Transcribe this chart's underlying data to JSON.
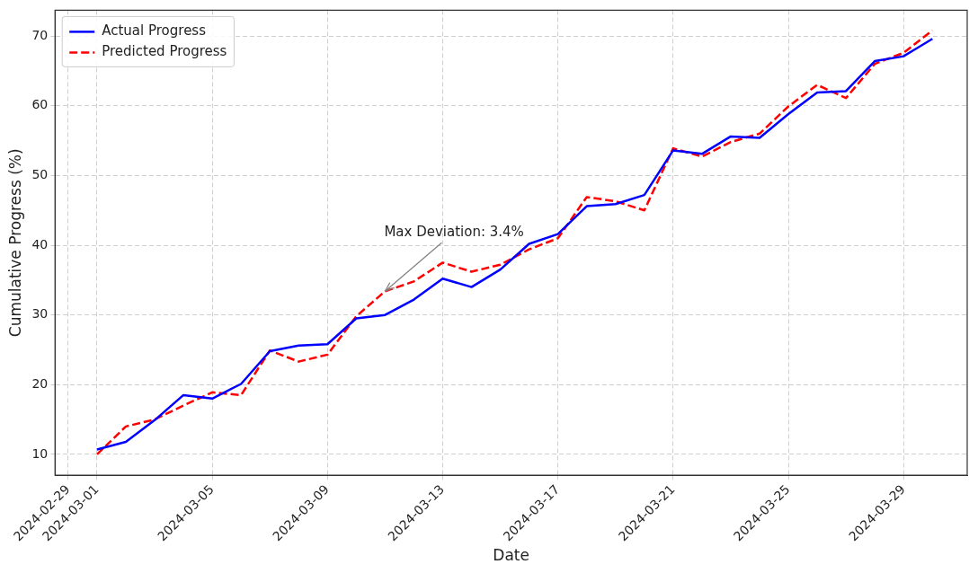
{
  "chart_data": {
    "type": "line",
    "xlabel": "Date",
    "ylabel": "Cumulative Progress (%)",
    "x": [
      "2024-03-01",
      "2024-03-02",
      "2024-03-03",
      "2024-03-04",
      "2024-03-05",
      "2024-03-06",
      "2024-03-07",
      "2024-03-08",
      "2024-03-09",
      "2024-03-10",
      "2024-03-11",
      "2024-03-12",
      "2024-03-13",
      "2024-03-14",
      "2024-03-15",
      "2024-03-16",
      "2024-03-17",
      "2024-03-18",
      "2024-03-19",
      "2024-03-20",
      "2024-03-21",
      "2024-03-22",
      "2024-03-23",
      "2024-03-24",
      "2024-03-25",
      "2024-03-26",
      "2024-03-27",
      "2024-03-28",
      "2024-03-29",
      "2024-03-30"
    ],
    "series": [
      {
        "name": "Actual Progress",
        "color": "#0000ff",
        "line_style": "solid",
        "values": [
          10.7,
          11.8,
          14.9,
          18.5,
          18.0,
          20.1,
          24.8,
          25.6,
          25.8,
          29.5,
          30.0,
          32.2,
          35.2,
          34.0,
          36.5,
          40.2,
          41.6,
          45.6,
          45.9,
          47.2,
          53.6,
          53.1,
          55.6,
          55.4,
          58.8,
          61.9,
          62.1,
          66.4,
          67.1,
          69.6
        ]
      },
      {
        "name": "Predicted Progress",
        "color": "#ff0000",
        "line_style": "dashed",
        "values": [
          10.0,
          14.0,
          15.0,
          17.0,
          18.9,
          18.5,
          24.9,
          23.3,
          24.3,
          29.8,
          33.4,
          34.8,
          37.5,
          36.2,
          37.2,
          39.4,
          41.0,
          46.9,
          46.3,
          45.0,
          53.9,
          52.7,
          54.8,
          56.0,
          59.9,
          63.0,
          61.1,
          66.0,
          67.6,
          70.8
        ]
      }
    ],
    "xlim": [
      "2024-02-28T13:00",
      "2024-03-31T05:00"
    ],
    "xticks": [
      "2024-02-29",
      "2024-03-01",
      "2024-03-05",
      "2024-03-09",
      "2024-03-13",
      "2024-03-17",
      "2024-03-21",
      "2024-03-25",
      "2024-03-29"
    ],
    "ylim": [
      7,
      73.7
    ],
    "yticks": [
      10,
      20,
      30,
      40,
      50,
      60,
      70
    ],
    "annotations": [
      {
        "text": "Max Deviation: 3.4%",
        "x": "2024-03-11",
        "y": 33.4
      }
    ],
    "grid": true,
    "legend": "top left",
    "marker": "none"
  }
}
